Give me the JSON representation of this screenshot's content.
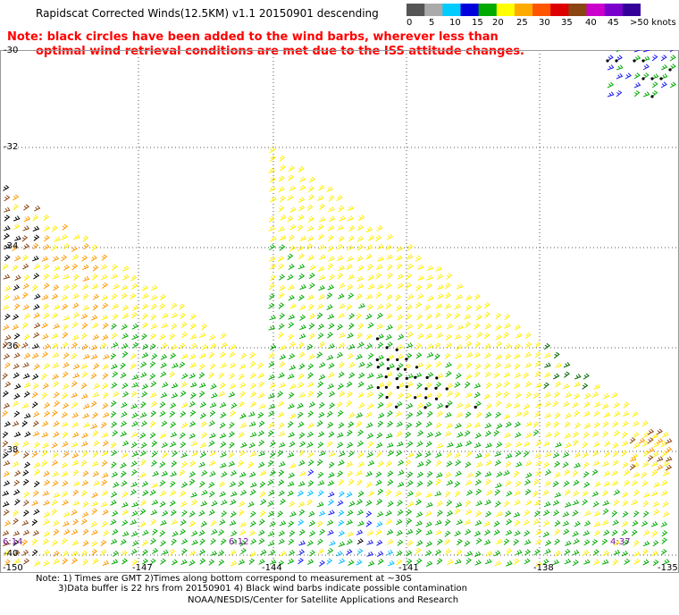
{
  "title": "Rapidscat Corrected Winds(12.5KM) v1.1 20150901 descending",
  "note": {
    "line1": "Note: black circles have been added to the wind barbs, wherever less than",
    "line2": "optimal wind retrieval conditions are met due to the ISS attitude changes."
  },
  "legend": {
    "ticks": [
      "0",
      "5",
      "10",
      "15",
      "20",
      "25",
      "30",
      "35",
      "40",
      "45",
      ">50 knots"
    ],
    "colors": [
      "#555555",
      "#aaaaaa",
      "#00ccff",
      "#0000dd",
      "#00aa00",
      "#ffff00",
      "#ffaa00",
      "#ff5500",
      "#dd0000",
      "#8b4513",
      "#cc00cc",
      "#7a00cc",
      "#330099"
    ]
  },
  "lat_labels": [
    "-30",
    "-32",
    "-34",
    "-36",
    "-38",
    "-40"
  ],
  "lon_labels": [
    "-150",
    "-147",
    "-144",
    "-141",
    "-138",
    "-135"
  ],
  "time_labels": [
    "6:14",
    "6:12",
    "4:37"
  ],
  "footer": {
    "line1": "Note: 1) Times are GMT 2)Times along bottom correspond to measurement at ~30S",
    "line2": "3)Data buffer is 22 hrs from 20150901 4) Black wind barbs indicate possible contamination",
    "line3": "NOAA/NESDIS/Center for Satellite Applications and Research"
  },
  "map": {
    "projection": "lat/lon grid",
    "lat_range": [
      -40,
      -30
    ],
    "lon_range": [
      -150,
      -135
    ],
    "gridlines": "dotted",
    "wind_speed_units": "knots"
  }
}
